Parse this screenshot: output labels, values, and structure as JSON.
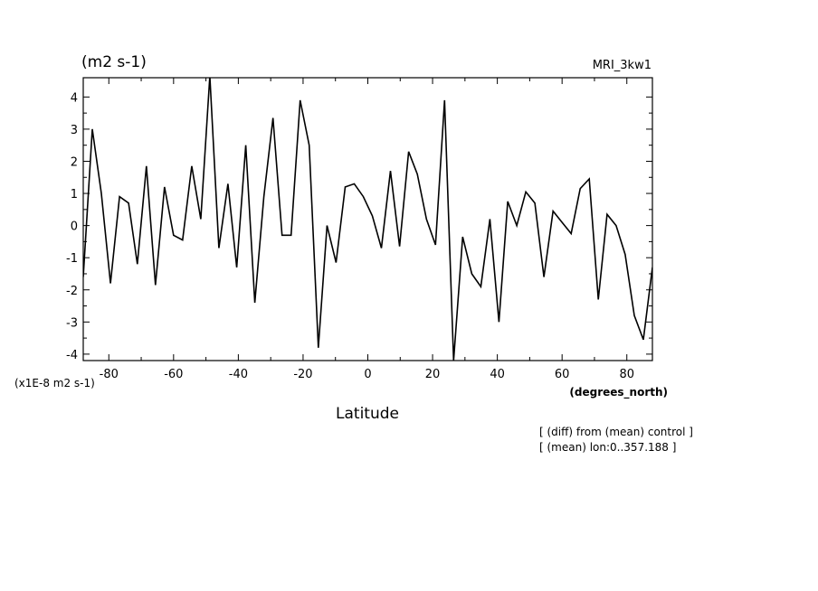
{
  "chart_data": {
    "type": "line",
    "title_left": "(m2 s-1)",
    "title_right": "MRI_3kw1",
    "xlabel": "Latitude",
    "x_units": "(degrees_north)",
    "y_scale_note": "(x1E-8 m2 s-1)",
    "notes": [
      "[ (diff) from (mean) control ]",
      "[ (mean) lon:0..357.188 ]"
    ],
    "xlim": [
      -87.9,
      87.9
    ],
    "ylim": [
      -4.2,
      4.6
    ],
    "x_ticks": [
      -80,
      -60,
      -40,
      -20,
      0,
      20,
      40,
      60,
      80
    ],
    "x_tick_labels": [
      "-80",
      "-60",
      "-40",
      "-20",
      "0",
      "20",
      "40",
      "60",
      "80"
    ],
    "y_ticks": [
      -4,
      -3,
      -2,
      -1,
      0,
      1,
      2,
      3,
      4
    ],
    "y_tick_labels": [
      "-4",
      "-3",
      "-2",
      "-1",
      "0",
      "1",
      "2",
      "3",
      "4"
    ],
    "grid": false,
    "series": [
      {
        "color": "#000000",
        "x": [
          -87.9,
          -85.1,
          -82.3,
          -79.5,
          -76.7,
          -73.9,
          -71.2,
          -68.4,
          -65.6,
          -62.8,
          -60.0,
          -57.2,
          -54.4,
          -51.6,
          -48.8,
          -46.0,
          -43.2,
          -40.5,
          -37.7,
          -34.9,
          -32.1,
          -29.3,
          -26.5,
          -23.7,
          -20.9,
          -18.1,
          -15.3,
          -12.6,
          -9.8,
          -7.0,
          -4.2,
          -1.4,
          1.4,
          4.2,
          7.0,
          9.8,
          12.6,
          15.3,
          18.1,
          20.9,
          23.7,
          26.5,
          29.3,
          32.1,
          34.9,
          37.7,
          40.5,
          43.2,
          46.0,
          48.8,
          51.6,
          54.4,
          57.2,
          60.0,
          62.8,
          65.6,
          68.4,
          71.2,
          73.9,
          76.7,
          79.5,
          82.3,
          85.1,
          87.9
        ],
        "y": [
          -1.6,
          3.0,
          1.0,
          -1.8,
          0.9,
          0.7,
          -1.2,
          1.85,
          -1.85,
          1.2,
          -0.3,
          -0.45,
          1.85,
          0.2,
          4.65,
          -0.7,
          1.3,
          -1.3,
          2.5,
          -2.4,
          0.9,
          3.35,
          -0.3,
          -0.3,
          3.9,
          2.5,
          -3.8,
          0.0,
          -1.15,
          1.2,
          1.3,
          0.9,
          0.3,
          -0.7,
          1.7,
          -0.65,
          2.3,
          1.6,
          0.2,
          -0.6,
          3.9,
          -4.2,
          -0.35,
          -1.5,
          -1.9,
          0.2,
          -3.0,
          0.75,
          0.0,
          1.05,
          0.7,
          -1.6,
          0.45,
          0.1,
          -0.25,
          1.15,
          1.45,
          -2.3,
          0.35,
          0.0,
          -0.9,
          -2.8,
          -3.55,
          -1.3
        ]
      }
    ]
  }
}
